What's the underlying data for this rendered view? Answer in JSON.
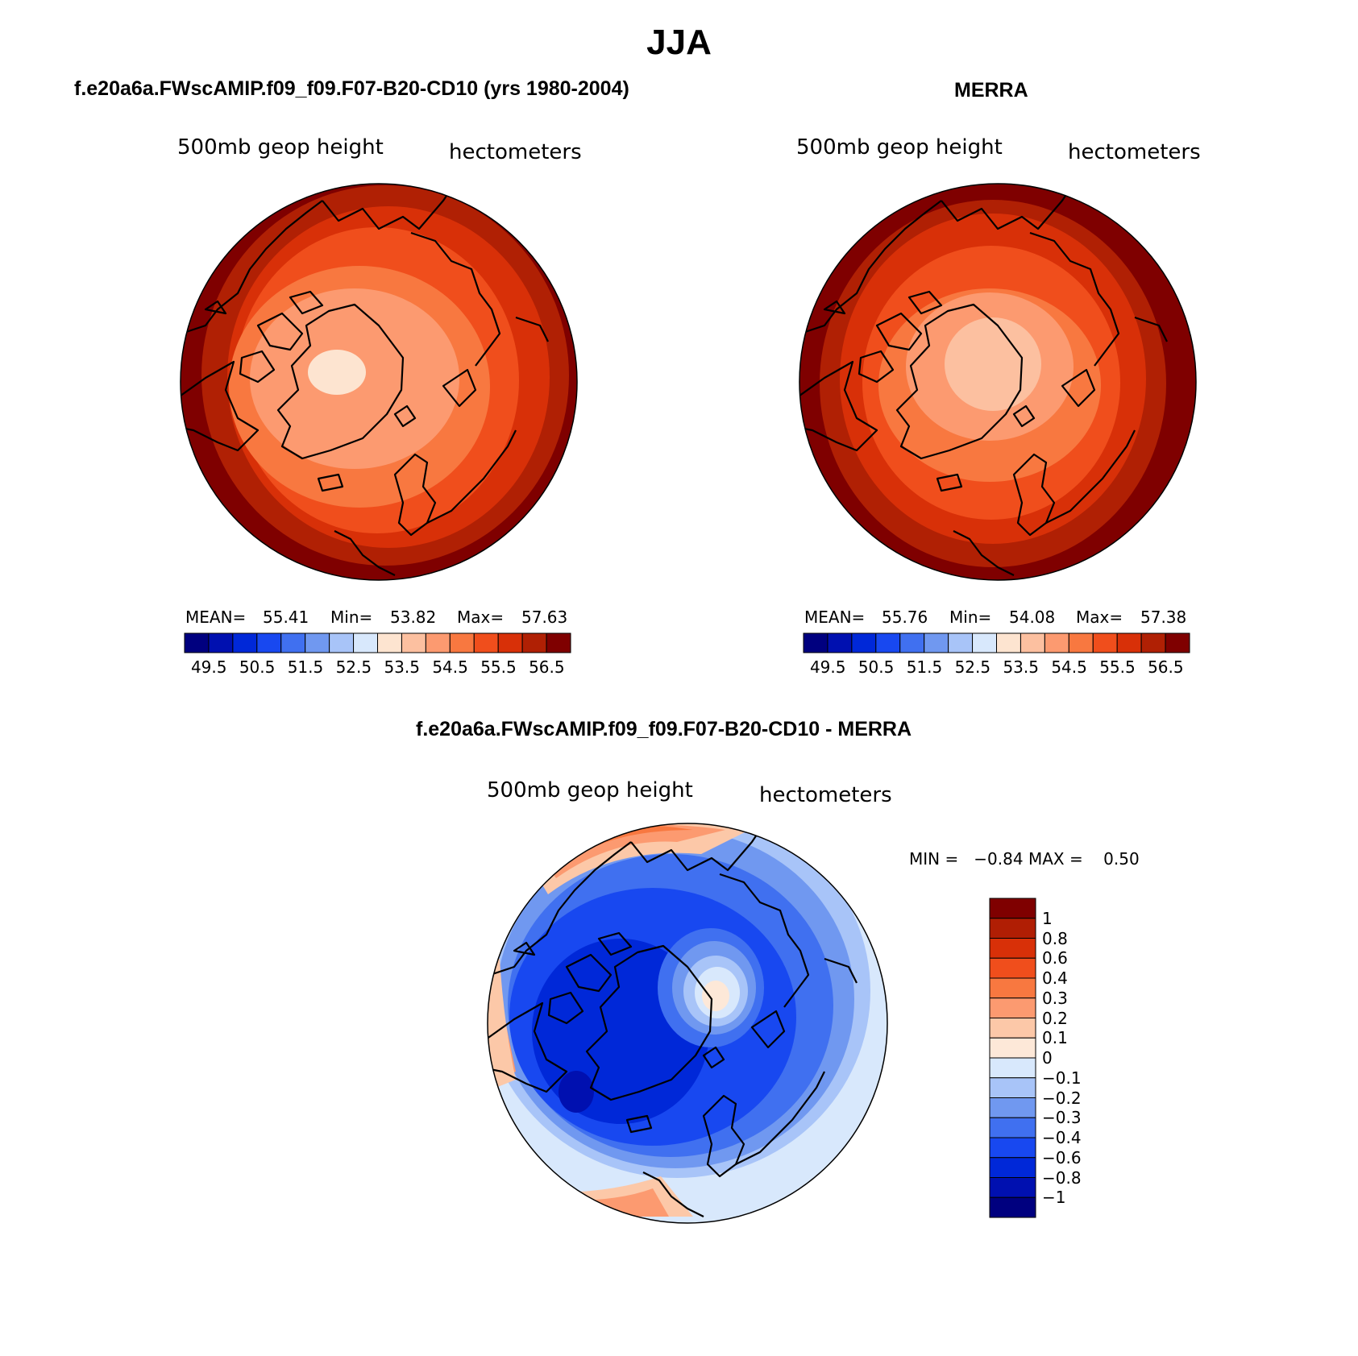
{
  "figure": {
    "season": "JJA",
    "field_label": "500mb geop height",
    "units_label": "hectometers"
  },
  "panels": [
    {
      "title": "f.e20a6a.FWscAMIP.f09_f09.F07-B20-CD10 (yrs 1980-2004)",
      "stats": {
        "mean_label": "MEAN=",
        "mean": "55.41",
        "min_label": "Min=",
        "min": "53.82",
        "max_label": "Max=",
        "max": "57.63"
      }
    },
    {
      "title": "MERRA",
      "stats": {
        "mean_label": "MEAN=",
        "mean": "55.76",
        "min_label": "Min=",
        "min": "54.08",
        "max_label": "Max=",
        "max": "57.38"
      }
    },
    {
      "title": "f.e20a6a.FWscAMIP.f09_f09.F07-B20-CD10 - MERRA",
      "stats": {
        "text": "MIN =   −0.84 MAX =    0.50"
      }
    }
  ],
  "colorbar_abs": {
    "tick_labels": [
      "49.5",
      "50.5",
      "51.5",
      "52.5",
      "53.5",
      "54.5",
      "55.5",
      "56.5"
    ],
    "colors": [
      "#00007f",
      "#0010b0",
      "#0028d8",
      "#1848f0",
      "#4070f0",
      "#7098f0",
      "#a8c4f8",
      "#d8e8fc",
      "#fde4d0",
      "#fcc0a0",
      "#fc9a70",
      "#f87840",
      "#f04e1c",
      "#d83008",
      "#b02004",
      "#7f0000"
    ]
  },
  "colorbar_diff": {
    "tick_labels": [
      "1",
      "0.8",
      "0.6",
      "0.4",
      "0.3",
      "0.2",
      "0.1",
      "0",
      "−0.1",
      "−0.2",
      "−0.3",
      "−0.4",
      "−0.6",
      "−0.8",
      "−1"
    ],
    "colors": [
      "#7f0000",
      "#b01e04",
      "#d83008",
      "#f04e1c",
      "#f87840",
      "#fc9a70",
      "#fcc8a8",
      "#fde8d8",
      "#d8e8fc",
      "#a8c4f8",
      "#7098f0",
      "#4070f0",
      "#1848f0",
      "#0028d8",
      "#0010b0",
      "#00007f"
    ]
  },
  "chart_data": {
    "type": "heatmap",
    "maps": [
      {
        "name": "f.e20a6a.FWscAMIP.f09_f09.F07-B20-CD10 (yrs 1980-2004)",
        "field": "500mb geop height",
        "units": "hectometers",
        "mean": 55.41,
        "min": 53.82,
        "max": 57.63
      },
      {
        "name": "MERRA",
        "field": "500mb geop height",
        "units": "hectometers",
        "mean": 55.76,
        "min": 54.08,
        "max": 57.38
      },
      {
        "name": "f.e20a6a.FWscAMIP.f09_f09.F07-B20-CD10 - MERRA",
        "field": "500mb geop height",
        "units": "hectometers",
        "min": -0.84,
        "max": 0.5
      }
    ],
    "abs_levels": [
      49.5,
      50.5,
      51.5,
      52.5,
      53.5,
      54.5,
      55.5,
      56.5
    ],
    "diff_levels": [
      1,
      0.8,
      0.6,
      0.4,
      0.3,
      0.2,
      0.1,
      0,
      -0.1,
      -0.2,
      -0.3,
      -0.4,
      -0.6,
      -0.8,
      -1
    ]
  }
}
